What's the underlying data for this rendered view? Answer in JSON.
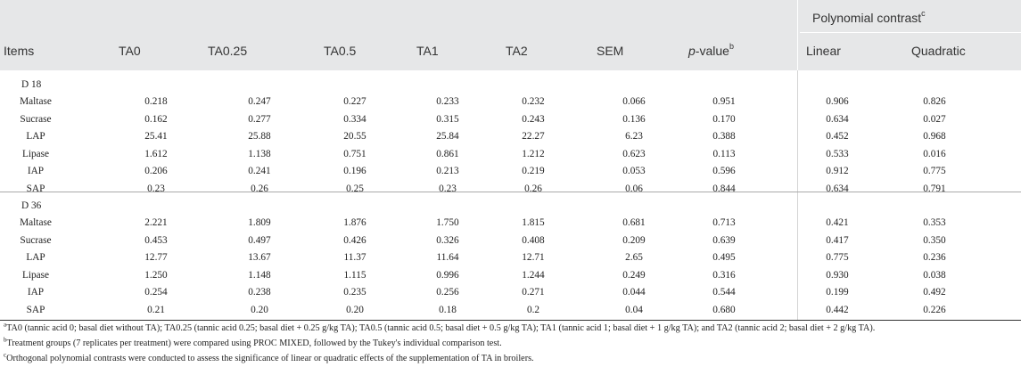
{
  "header": {
    "items": "Items",
    "ta0": "TA0",
    "ta025": "TA0.25",
    "ta05": "TA0.5",
    "ta1": "TA1",
    "ta2": "TA2",
    "sem": "SEM",
    "pvalue_italic": "p",
    "pvalue_rest": "-value",
    "pvalue_sup": "b",
    "poly_contrast": "Polynomial contrast",
    "poly_sup": "c",
    "linear": "Linear",
    "quadratic": "Quadratic"
  },
  "groups": [
    {
      "label": "D 18",
      "rows": [
        {
          "item": "Maltase",
          "ta0": "0.218",
          "ta025": "0.247",
          "ta05": "0.227",
          "ta1": "0.233",
          "ta2": "0.232",
          "sem": "0.066",
          "p": "0.951",
          "linear": "0.906",
          "quadratic": "0.826"
        },
        {
          "item": "Sucrase",
          "ta0": "0.162",
          "ta025": "0.277",
          "ta05": "0.334",
          "ta1": "0.315",
          "ta2": "0.243",
          "sem": "0.136",
          "p": "0.170",
          "linear": "0.634",
          "quadratic": "0.027"
        },
        {
          "item": "LAP",
          "ta0": "25.41",
          "ta025": "25.88",
          "ta05": "20.55",
          "ta1": "25.84",
          "ta2": "22.27",
          "sem": "6.23",
          "p": "0.388",
          "linear": "0.452",
          "quadratic": "0.968"
        },
        {
          "item": "Lipase",
          "ta0": "1.612",
          "ta025": "1.138",
          "ta05": "0.751",
          "ta1": "0.861",
          "ta2": "1.212",
          "sem": "0.623",
          "p": "0.113",
          "linear": "0.533",
          "quadratic": "0.016"
        },
        {
          "item": "IAP",
          "ta0": "0.206",
          "ta025": "0.241",
          "ta05": "0.196",
          "ta1": "0.213",
          "ta2": "0.219",
          "sem": "0.053",
          "p": "0.596",
          "linear": "0.912",
          "quadratic": "0.775"
        },
        {
          "item": "SAP",
          "ta0": "0.23",
          "ta025": "0.26",
          "ta05": "0.25",
          "ta1": "0.23",
          "ta2": "0.26",
          "sem": "0.06",
          "p": "0.844",
          "linear": "0.634",
          "quadratic": "0.791"
        }
      ]
    },
    {
      "label": "D 36",
      "rows": [
        {
          "item": "Maltase",
          "ta0": "2.221",
          "ta025": "1.809",
          "ta05": "1.876",
          "ta1": "1.750",
          "ta2": "1.815",
          "sem": "0.681",
          "p": "0.713",
          "linear": "0.421",
          "quadratic": "0.353"
        },
        {
          "item": "Sucrase",
          "ta0": "0.453",
          "ta025": "0.497",
          "ta05": "0.426",
          "ta1": "0.326",
          "ta2": "0.408",
          "sem": "0.209",
          "p": "0.639",
          "linear": "0.417",
          "quadratic": "0.350"
        },
        {
          "item": "LAP",
          "ta0": "12.77",
          "ta025": "13.67",
          "ta05": "11.37",
          "ta1": "11.64",
          "ta2": "12.71",
          "sem": "2.65",
          "p": "0.495",
          "linear": "0.775",
          "quadratic": "0.236"
        },
        {
          "item": "Lipase",
          "ta0": "1.250",
          "ta025": "1.148",
          "ta05": "1.115",
          "ta1": "0.996",
          "ta2": "1.244",
          "sem": "0.249",
          "p": "0.316",
          "linear": "0.930",
          "quadratic": "0.038"
        },
        {
          "item": "IAP",
          "ta0": "0.254",
          "ta025": "0.238",
          "ta05": "0.235",
          "ta1": "0.256",
          "ta2": "0.271",
          "sem": "0.044",
          "p": "0.544",
          "linear": "0.199",
          "quadratic": "0.492"
        },
        {
          "item": "SAP",
          "ta0": "0.21",
          "ta025": "0.20",
          "ta05": "0.20",
          "ta1": "0.18",
          "ta2": "0.2",
          "sem": "0.04",
          "p": "0.680",
          "linear": "0.442",
          "quadratic": "0.226"
        }
      ]
    }
  ],
  "footnotes": [
    {
      "sup": "a",
      "text": "TA0 (tannic acid 0; basal diet without TA); TA0.25 (tannic acid 0.25; basal diet + 0.25 g/kg TA); TA0.5 (tannic acid 0.5; basal diet + 0.5 g/kg TA); TA1 (tannic acid 1; basal diet + 1 g/kg TA); and TA2 (tannic acid 2; basal diet + 2 g/kg TA)."
    },
    {
      "sup": "b",
      "text": "Treatment groups (7 replicates per treatment) were compared using PROC MIXED, followed by the Tukey's individual comparison test."
    },
    {
      "sup": "c",
      "text": "Orthogonal polynomial contrasts were conducted to assess the significance of linear or quadratic effects of the supplementation of TA in broilers."
    }
  ],
  "colors": {
    "header_bg": "#e6e7e8",
    "text": "#222222",
    "rule": "#333333"
  }
}
